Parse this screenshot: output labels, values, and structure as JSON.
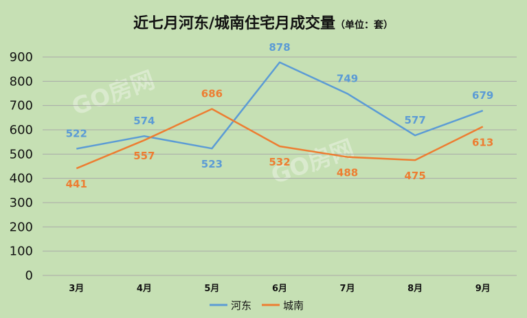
{
  "chart_data": {
    "type": "line",
    "title": "近七月河东/城南住宅月成交量",
    "subtitle": "（单位：套）",
    "categories": [
      "3月",
      "4月",
      "5月",
      "6月",
      "7月",
      "8月",
      "9月"
    ],
    "series": [
      {
        "name": "河东",
        "color": "#5b9bd5",
        "values": [
          522,
          574,
          523,
          878,
          749,
          577,
          679
        ]
      },
      {
        "name": "城南",
        "color": "#ed7d31",
        "values": [
          441,
          557,
          686,
          532,
          488,
          475,
          613
        ]
      }
    ],
    "yticks": [
      0,
      100,
      200,
      300,
      400,
      500,
      600,
      700,
      800,
      900
    ],
    "ylim": [
      0,
      900
    ],
    "grid": true,
    "legend_position": "bottom",
    "watermark": "GO房网"
  }
}
